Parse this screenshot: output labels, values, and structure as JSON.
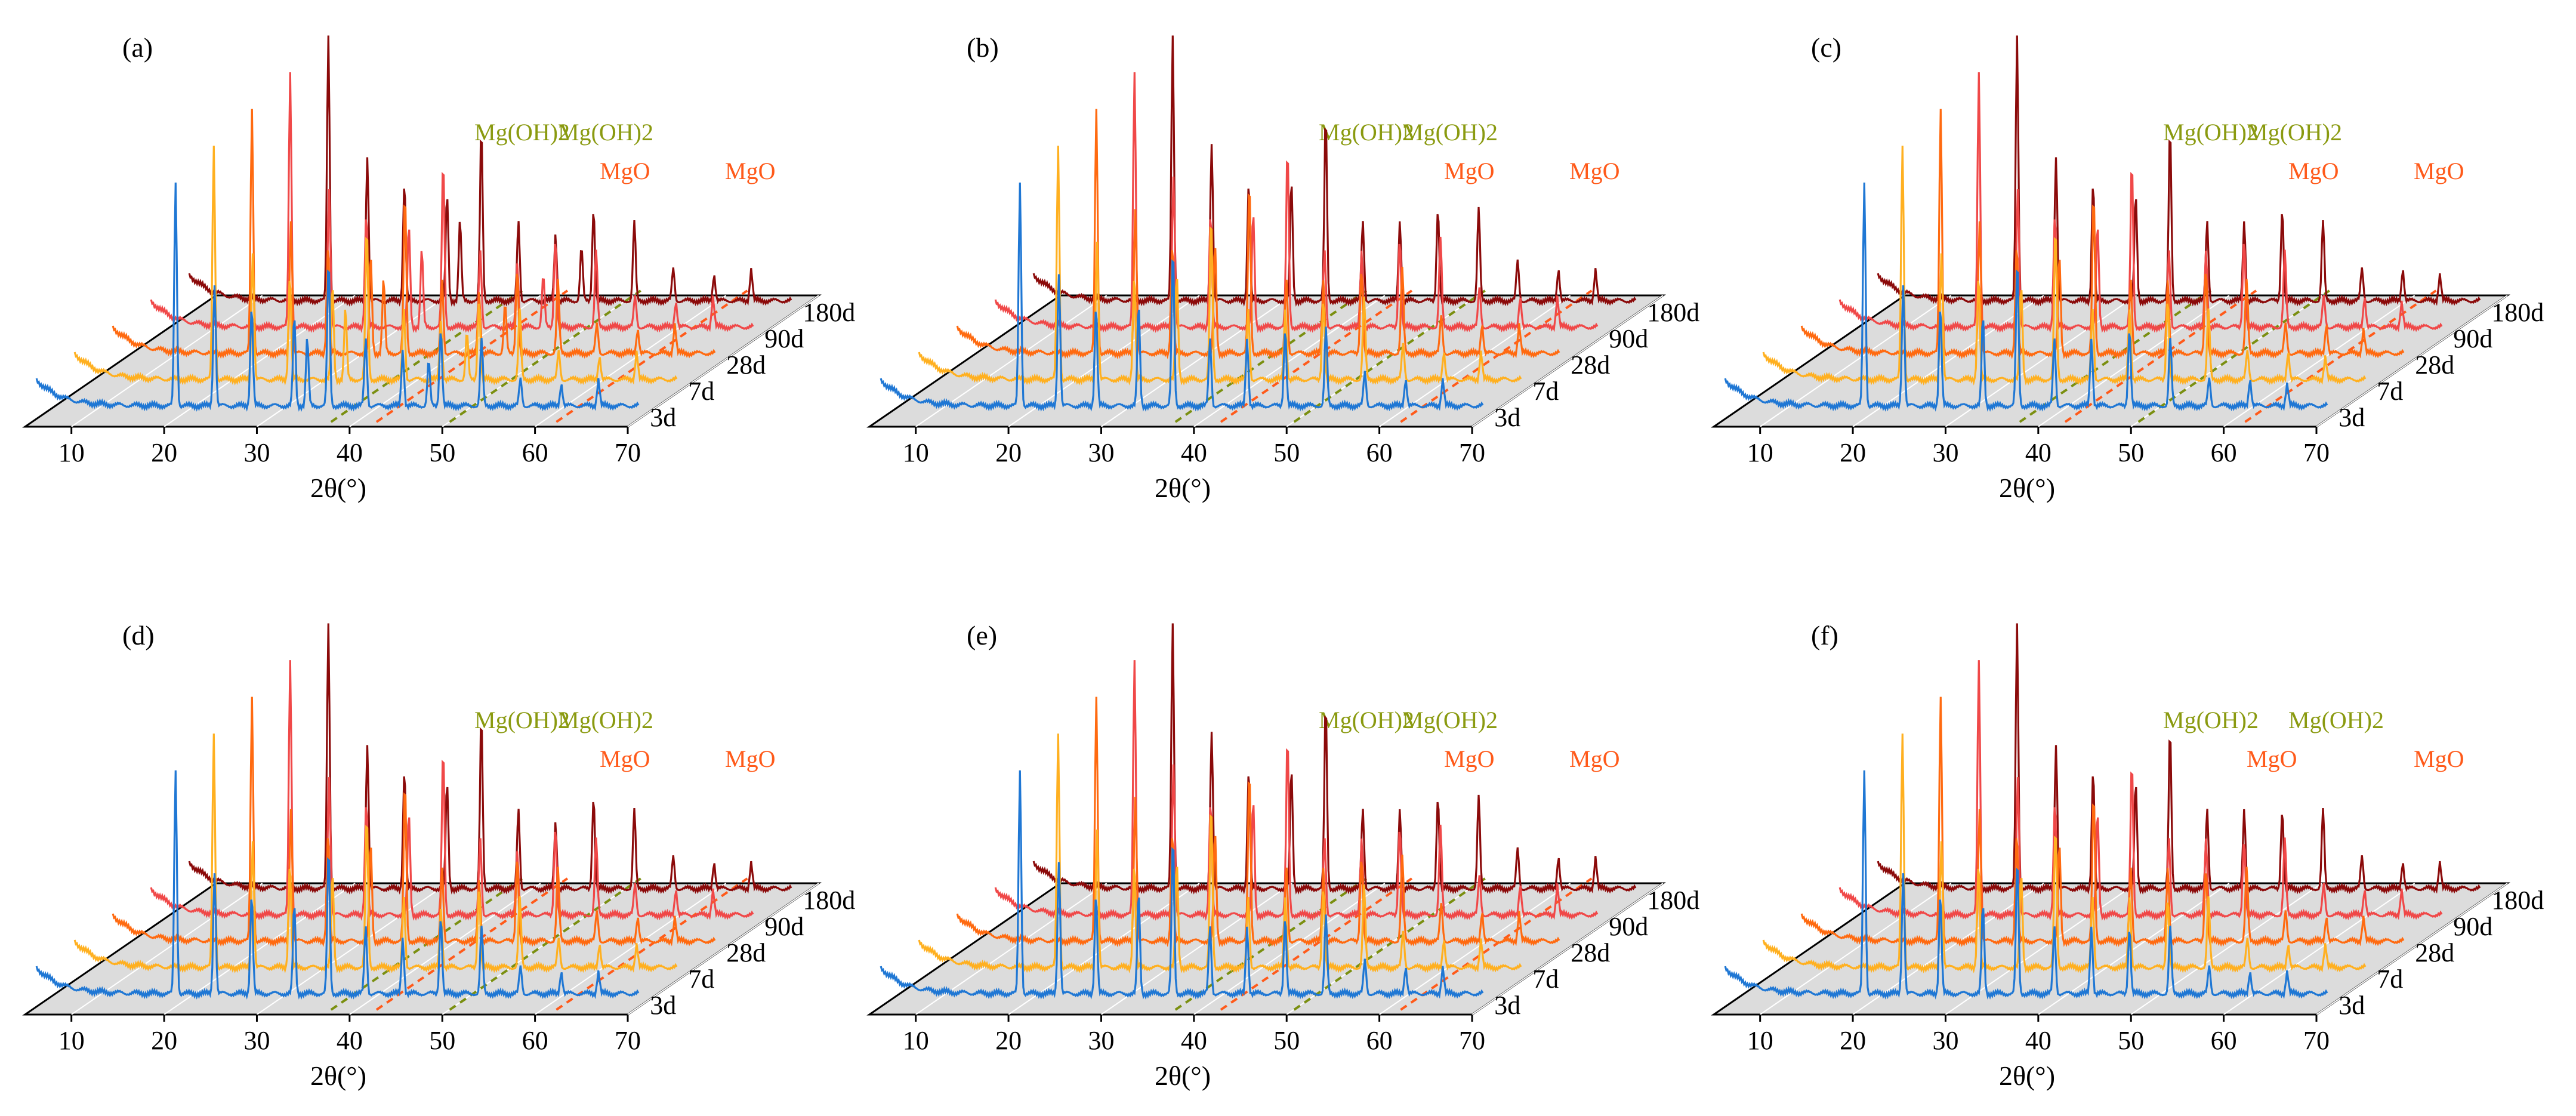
{
  "colors": {
    "floor": "#dcdcdc",
    "axis": "#000000",
    "mgoh2_line": "#7a8f10",
    "mgo_line": "#ff5a1a",
    "mgoh2_text": "#8a9a10",
    "mgo_text": "#ff5a1a"
  },
  "chart_data": [
    {
      "type": "line",
      "panel": "(a)",
      "xlabel": "2θ(°)",
      "x_ticks": [
        10,
        20,
        30,
        40,
        50,
        60,
        70
      ],
      "xlim": [
        5,
        70
      ],
      "series_names": [
        "3d",
        "7d",
        "28d",
        "90d",
        "180d"
      ],
      "series_colors": [
        "#1f77d4",
        "#ffb020",
        "#ff6a10",
        "#f04848",
        "#8b0a0a"
      ],
      "reference_lines": [
        {
          "phase": "Mg(OH)2",
          "two_theta": 38.0
        },
        {
          "phase": "MgO",
          "two_theta": 42.9
        },
        {
          "phase": "Mg(OH)2",
          "two_theta": 50.8
        },
        {
          "phase": "MgO",
          "two_theta": 62.3
        }
      ],
      "peaks": [
        {
          "two_theta": 20.0,
          "intensity": 1.0
        },
        {
          "two_theta": 24.2,
          "intensity": 0.55
        },
        {
          "two_theta": 28.2,
          "intensity": 0.45
        },
        {
          "two_theta": 32.8,
          "intensity": 0.4
        },
        {
          "two_theta": 34.2,
          "intensity": 0.3
        },
        {
          "two_theta": 36.5,
          "intensity": 0.65
        },
        {
          "two_theta": 40.5,
          "intensity": 0.3
        },
        {
          "two_theta": 44.5,
          "intensity": 0.25
        },
        {
          "two_theta": 47.3,
          "intensity": 0.2
        },
        {
          "two_theta": 48.6,
          "intensity": 0.35
        },
        {
          "two_theta": 53.0,
          "intensity": 0.3
        },
        {
          "two_theta": 57.2,
          "intensity": 0.12
        },
        {
          "two_theta": 61.6,
          "intensity": 0.1
        },
        {
          "two_theta": 65.6,
          "intensity": 0.12
        }
      ]
    },
    {
      "type": "line",
      "panel": "(b)",
      "xlabel": "2θ(°)",
      "x_ticks": [
        10,
        20,
        30,
        40,
        50,
        60,
        70
      ],
      "xlim": [
        5,
        70
      ],
      "series_names": [
        "3d",
        "7d",
        "28d",
        "90d",
        "180d"
      ],
      "series_colors": [
        "#1f77d4",
        "#ffb020",
        "#ff6a10",
        "#f04848",
        "#8b0a0a"
      ],
      "reference_lines": [
        {
          "phase": "Mg(OH)2",
          "two_theta": 38.0
        },
        {
          "phase": "MgO",
          "two_theta": 42.9
        },
        {
          "phase": "Mg(OH)2",
          "two_theta": 50.8
        },
        {
          "phase": "MgO",
          "two_theta": 62.3
        }
      ],
      "peaks": [
        {
          "two_theta": 20.0,
          "intensity": 1.0
        },
        {
          "two_theta": 24.2,
          "intensity": 0.6
        },
        {
          "two_theta": 28.2,
          "intensity": 0.45
        },
        {
          "two_theta": 32.8,
          "intensity": 0.45
        },
        {
          "two_theta": 36.5,
          "intensity": 0.7
        },
        {
          "two_theta": 40.5,
          "intensity": 0.3
        },
        {
          "two_theta": 44.5,
          "intensity": 0.3
        },
        {
          "two_theta": 48.6,
          "intensity": 0.35
        },
        {
          "two_theta": 53.0,
          "intensity": 0.35
        },
        {
          "two_theta": 57.2,
          "intensity": 0.15
        },
        {
          "two_theta": 61.6,
          "intensity": 0.12
        },
        {
          "two_theta": 65.6,
          "intensity": 0.12
        }
      ]
    },
    {
      "type": "line",
      "panel": "(c)",
      "xlabel": "2θ(°)",
      "x_ticks": [
        10,
        20,
        30,
        40,
        50,
        60,
        70
      ],
      "xlim": [
        5,
        70
      ],
      "series_names": [
        "3d",
        "7d",
        "28d",
        "90d",
        "180d"
      ],
      "series_colors": [
        "#1f77d4",
        "#ffb020",
        "#ff6a10",
        "#f04848",
        "#8b0a0a"
      ],
      "reference_lines": [
        {
          "phase": "Mg(OH)2",
          "two_theta": 38.0
        },
        {
          "phase": "MgO",
          "two_theta": 42.9
        },
        {
          "phase": "Mg(OH)2",
          "two_theta": 50.8
        },
        {
          "phase": "MgO",
          "two_theta": 62.3
        }
      ],
      "peaks": [
        {
          "two_theta": 20.0,
          "intensity": 1.0
        },
        {
          "two_theta": 24.2,
          "intensity": 0.55
        },
        {
          "two_theta": 28.2,
          "intensity": 0.45
        },
        {
          "two_theta": 32.8,
          "intensity": 0.4
        },
        {
          "two_theta": 36.5,
          "intensity": 0.65
        },
        {
          "two_theta": 40.5,
          "intensity": 0.3
        },
        {
          "two_theta": 44.5,
          "intensity": 0.3
        },
        {
          "two_theta": 48.6,
          "intensity": 0.35
        },
        {
          "two_theta": 53.0,
          "intensity": 0.3
        },
        {
          "two_theta": 57.2,
          "intensity": 0.12
        },
        {
          "two_theta": 61.6,
          "intensity": 0.12
        },
        {
          "two_theta": 65.6,
          "intensity": 0.1
        }
      ]
    },
    {
      "type": "line",
      "panel": "(d)",
      "xlabel": "2θ(°)",
      "x_ticks": [
        10,
        20,
        30,
        40,
        50,
        60,
        70
      ],
      "xlim": [
        5,
        70
      ],
      "series_names": [
        "3d",
        "7d",
        "28d",
        "90d",
        "180d"
      ],
      "series_colors": [
        "#1f77d4",
        "#ffb020",
        "#ff6a10",
        "#f04848",
        "#8b0a0a"
      ],
      "reference_lines": [
        {
          "phase": "Mg(OH)2",
          "two_theta": 38.0
        },
        {
          "phase": "MgO",
          "two_theta": 42.9
        },
        {
          "phase": "Mg(OH)2",
          "two_theta": 50.8
        },
        {
          "phase": "MgO",
          "two_theta": 62.3
        }
      ],
      "peaks": [
        {
          "two_theta": 20.0,
          "intensity": 1.0
        },
        {
          "two_theta": 24.2,
          "intensity": 0.55
        },
        {
          "two_theta": 28.2,
          "intensity": 0.45
        },
        {
          "two_theta": 32.8,
          "intensity": 0.4
        },
        {
          "two_theta": 36.5,
          "intensity": 0.65
        },
        {
          "two_theta": 40.5,
          "intensity": 0.3
        },
        {
          "two_theta": 44.5,
          "intensity": 0.25
        },
        {
          "two_theta": 48.6,
          "intensity": 0.35
        },
        {
          "two_theta": 53.0,
          "intensity": 0.3
        },
        {
          "two_theta": 57.2,
          "intensity": 0.12
        },
        {
          "two_theta": 61.6,
          "intensity": 0.1
        },
        {
          "two_theta": 65.6,
          "intensity": 0.1
        }
      ]
    },
    {
      "type": "line",
      "panel": "(e)",
      "xlabel": "2θ(°)",
      "x_ticks": [
        10,
        20,
        30,
        40,
        50,
        60,
        70
      ],
      "xlim": [
        5,
        70
      ],
      "series_names": [
        "3d",
        "7d",
        "28d",
        "90d",
        "180d"
      ],
      "series_colors": [
        "#1f77d4",
        "#ffb020",
        "#ff6a10",
        "#f04848",
        "#8b0a0a"
      ],
      "reference_lines": [
        {
          "phase": "Mg(OH)2",
          "two_theta": 38.0
        },
        {
          "phase": "MgO",
          "two_theta": 42.9
        },
        {
          "phase": "Mg(OH)2",
          "two_theta": 50.8
        },
        {
          "phase": "MgO",
          "two_theta": 62.3
        }
      ],
      "peaks": [
        {
          "two_theta": 20.0,
          "intensity": 1.0
        },
        {
          "two_theta": 24.2,
          "intensity": 0.6
        },
        {
          "two_theta": 28.2,
          "intensity": 0.45
        },
        {
          "two_theta": 32.8,
          "intensity": 0.45
        },
        {
          "two_theta": 36.5,
          "intensity": 0.7
        },
        {
          "two_theta": 40.5,
          "intensity": 0.3
        },
        {
          "two_theta": 44.5,
          "intensity": 0.3
        },
        {
          "two_theta": 48.6,
          "intensity": 0.35
        },
        {
          "two_theta": 53.0,
          "intensity": 0.35
        },
        {
          "two_theta": 57.2,
          "intensity": 0.15
        },
        {
          "two_theta": 61.6,
          "intensity": 0.12
        },
        {
          "two_theta": 65.6,
          "intensity": 0.12
        }
      ]
    },
    {
      "type": "line",
      "panel": "(f)",
      "xlabel": "2θ(°)",
      "x_ticks": [
        10,
        20,
        30,
        40,
        50,
        60,
        70
      ],
      "xlim": [
        5,
        70
      ],
      "series_names": [
        "3d",
        "7d",
        "28d",
        "90d",
        "180d"
      ],
      "series_colors": [
        "#1f77d4",
        "#ffb020",
        "#ff6a10",
        "#f04848",
        "#8b0a0a"
      ],
      "reference_lines": [],
      "peak_annotations": [
        "Mg(OH)2",
        "Mg(OH)2",
        "MgO",
        "MgO"
      ],
      "peaks": [
        {
          "two_theta": 20.0,
          "intensity": 1.0
        },
        {
          "two_theta": 24.2,
          "intensity": 0.55
        },
        {
          "two_theta": 28.2,
          "intensity": 0.45
        },
        {
          "two_theta": 32.8,
          "intensity": 0.4
        },
        {
          "two_theta": 36.5,
          "intensity": 0.6
        },
        {
          "two_theta": 40.5,
          "intensity": 0.3
        },
        {
          "two_theta": 44.5,
          "intensity": 0.3
        },
        {
          "two_theta": 48.6,
          "intensity": 0.3
        },
        {
          "two_theta": 53.0,
          "intensity": 0.3
        },
        {
          "two_theta": 57.2,
          "intensity": 0.12
        },
        {
          "two_theta": 61.6,
          "intensity": 0.1
        },
        {
          "two_theta": 65.6,
          "intensity": 0.1
        }
      ]
    }
  ]
}
